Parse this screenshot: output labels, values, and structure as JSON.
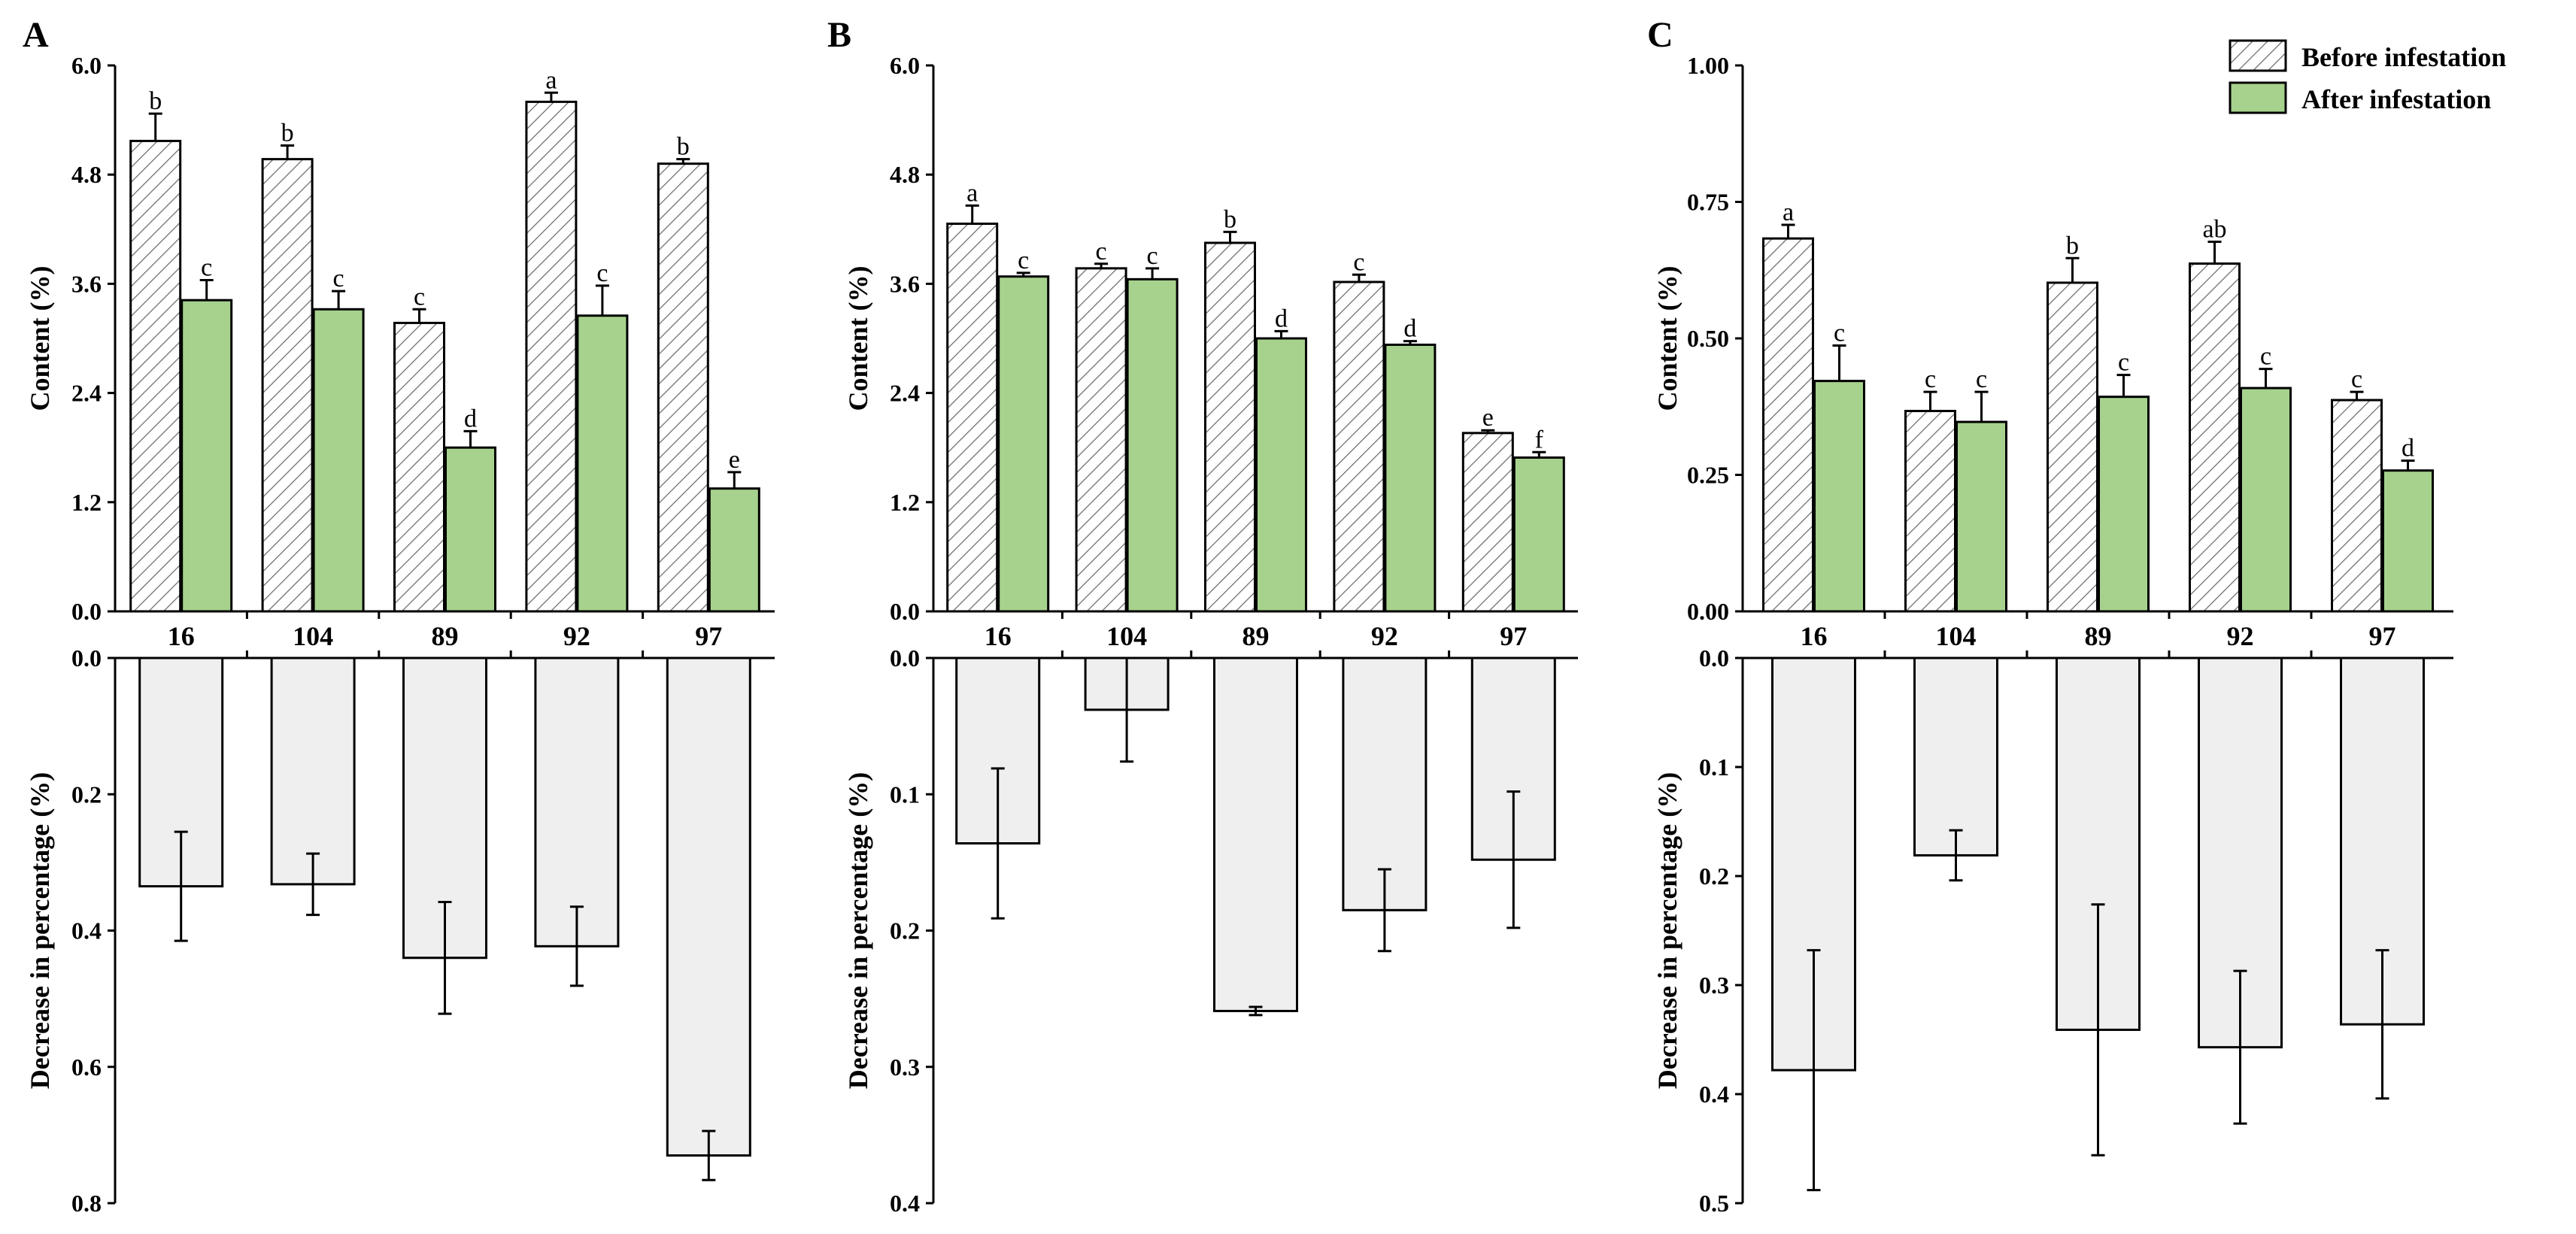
{
  "legend": {
    "before": "Before infestation",
    "after": "After infestation"
  },
  "colors": {
    "before_fill": "#ffffff",
    "before_hatch": "#6b6b6b",
    "after_fill": "#a7d28d",
    "decrease_fill": "#efefef",
    "stroke": "#000000"
  },
  "chart_data": [
    {
      "panel": "A",
      "type": "bar",
      "categories": [
        "16",
        "104",
        "89",
        "92",
        "97"
      ],
      "top": {
        "ylabel": "Content (%)",
        "ylim": [
          0,
          6.0
        ],
        "yticks": [
          "0.0",
          "1.2",
          "2.4",
          "3.6",
          "4.8",
          "6.0"
        ],
        "series": [
          {
            "name": "Before infestation",
            "values": [
              5.17,
              4.97,
              3.17,
              5.6,
              4.92
            ],
            "errors": [
              0.3,
              0.15,
              0.15,
              0.1,
              0.05
            ],
            "letters": [
              "b",
              "b",
              "c",
              "a",
              "b"
            ]
          },
          {
            "name": "After infestation",
            "values": [
              3.42,
              3.32,
              1.8,
              3.25,
              1.35
            ],
            "errors": [
              0.22,
              0.2,
              0.18,
              0.33,
              0.18
            ],
            "letters": [
              "c",
              "c",
              "d",
              "c",
              "e"
            ]
          }
        ]
      },
      "bottom": {
        "ylabel": "Decrease in percentage (%)",
        "ylim": [
          0,
          0.8
        ],
        "yticks": [
          "0.0",
          "0.2",
          "0.4",
          "0.6",
          "0.8"
        ],
        "values": [
          0.335,
          0.332,
          0.44,
          0.423,
          0.73
        ],
        "errors": [
          0.08,
          0.045,
          0.082,
          0.058,
          0.036
        ]
      }
    },
    {
      "panel": "B",
      "type": "bar",
      "categories": [
        "16",
        "104",
        "89",
        "92",
        "97"
      ],
      "top": {
        "ylabel": "Content (%)",
        "ylim": [
          0,
          6.0
        ],
        "yticks": [
          "0.0",
          "1.2",
          "2.4",
          "3.6",
          "4.8",
          "6.0"
        ],
        "series": [
          {
            "name": "Before infestation",
            "values": [
              4.26,
              3.77,
              4.05,
              3.62,
              1.96
            ],
            "errors": [
              0.2,
              0.05,
              0.12,
              0.08,
              0.03
            ],
            "letters": [
              "a",
              "c",
              "b",
              "c",
              "e"
            ]
          },
          {
            "name": "After infestation",
            "values": [
              3.68,
              3.65,
              3.0,
              2.93,
              1.69
            ],
            "errors": [
              0.04,
              0.12,
              0.08,
              0.04,
              0.06
            ],
            "letters": [
              "c",
              "c",
              "d",
              "d",
              "f"
            ]
          }
        ]
      },
      "bottom": {
        "ylabel": "Decrease in percentage (%)",
        "ylim": [
          0,
          0.4
        ],
        "yticks": [
          "0.0",
          "0.1",
          "0.2",
          "0.3",
          "0.4"
        ],
        "values": [
          0.136,
          0.038,
          0.259,
          0.185,
          0.148
        ],
        "errors": [
          0.055,
          0.038,
          0.003,
          0.03,
          0.05
        ]
      }
    },
    {
      "panel": "C",
      "type": "bar",
      "categories": [
        "16",
        "104",
        "89",
        "92",
        "97"
      ],
      "top": {
        "ylabel": "Content (%)",
        "ylim": [
          0,
          1.0
        ],
        "yticks": [
          "0.00",
          "0.25",
          "0.50",
          "0.75",
          "1.00"
        ],
        "series": [
          {
            "name": "Before infestation",
            "values": [
              0.683,
              0.367,
              0.602,
              0.637,
              0.387
            ],
            "errors": [
              0.025,
              0.035,
              0.045,
              0.04,
              0.015
            ],
            "letters": [
              "a",
              "c",
              "b",
              "ab",
              "c"
            ]
          },
          {
            "name": "After infestation",
            "values": [
              0.422,
              0.347,
              0.393,
              0.409,
              0.258
            ],
            "errors": [
              0.065,
              0.055,
              0.04,
              0.035,
              0.018
            ],
            "letters": [
              "c",
              "c",
              "c",
              "c",
              "d"
            ]
          }
        ]
      },
      "bottom": {
        "ylabel": "Decrease in percentage (%)",
        "ylim": [
          0,
          0.5
        ],
        "yticks": [
          "0.0",
          "0.1",
          "0.2",
          "0.3",
          "0.4",
          "0.5"
        ],
        "values": [
          0.378,
          0.181,
          0.341,
          0.357,
          0.336
        ],
        "errors": [
          0.11,
          0.023,
          0.115,
          0.07,
          0.068
        ]
      }
    }
  ]
}
